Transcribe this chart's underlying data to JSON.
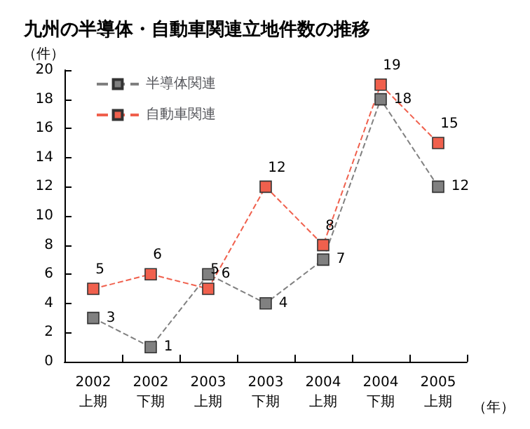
{
  "chart_data": {
    "type": "line",
    "title": "九州の半導体・自動車関連立地件数の推移",
    "ylabel": "（件）",
    "xlabel": "（年）",
    "categories": [
      "2002\n上期",
      "2002\n下期",
      "2003\n上期",
      "2003\n下期",
      "2004\n上期",
      "2004\n下期",
      "2005\n上期"
    ],
    "series": [
      {
        "name": "半導体関連",
        "color": "#808080",
        "values": [
          3,
          1,
          6,
          4,
          7,
          18,
          12
        ]
      },
      {
        "name": "自動車関連",
        "color": "#f0604d",
        "values": [
          5,
          6,
          5,
          12,
          8,
          19,
          15
        ]
      }
    ],
    "ylim": [
      0,
      20
    ],
    "yticks": [
      0,
      2,
      4,
      6,
      8,
      10,
      12,
      14,
      16,
      18,
      20
    ],
    "grid": false,
    "legend": "top left",
    "marker": "square",
    "line_style": "dashed",
    "data_labels": true
  }
}
